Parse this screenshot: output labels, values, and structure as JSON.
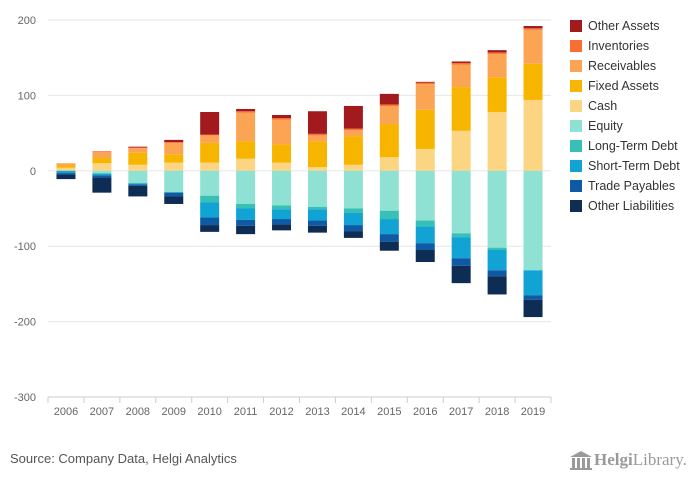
{
  "chart_data": {
    "type": "bar",
    "stacked": true,
    "categories": [
      "2006",
      "2007",
      "2008",
      "2009",
      "2010",
      "2011",
      "2012",
      "2013",
      "2014",
      "2015",
      "2016",
      "2017",
      "2018",
      "2019"
    ],
    "ylim": [
      -300,
      200
    ],
    "yticks": [
      200,
      100,
      0,
      -100,
      -200,
      -300
    ],
    "grid": true,
    "legend_position": "right",
    "positive_series": [
      {
        "name": "Cash",
        "color": "#fcd583",
        "values": [
          4,
          10,
          8,
          11,
          11,
          16,
          11,
          5,
          8,
          18,
          29,
          53,
          78,
          94
        ]
      },
      {
        "name": "Fixed Assets",
        "color": "#f8b500",
        "values": [
          3,
          7,
          16,
          11,
          26,
          23,
          24,
          34,
          38,
          44,
          52,
          58,
          46,
          48
        ]
      },
      {
        "name": "Receivables",
        "color": "#fba454",
        "values": [
          3,
          8,
          6,
          15,
          10,
          38,
          33,
          8,
          8,
          24,
          34,
          30,
          31,
          45
        ]
      },
      {
        "name": "Inventories",
        "color": "#f96e34",
        "values": [
          0,
          1,
          1,
          1,
          1,
          2,
          2,
          2,
          2,
          2,
          2,
          2,
          2,
          2
        ]
      },
      {
        "name": "Other Assets",
        "color": "#a21a1e",
        "values": [
          0,
          0,
          1,
          3,
          30,
          3,
          4,
          30,
          30,
          14,
          1,
          2,
          3,
          3
        ]
      }
    ],
    "negative_series": [
      {
        "name": "Equity",
        "color": "#8fe1d4",
        "values": [
          0,
          -3,
          -16,
          -28,
          -33,
          -44,
          -46,
          -48,
          -50,
          -53,
          -66,
          -83,
          -102,
          -132
        ]
      },
      {
        "name": "Long-Term Debt",
        "color": "#37c0b5",
        "values": [
          0,
          -1,
          -1,
          -1,
          -9,
          -6,
          -5,
          -3,
          -6,
          -11,
          -8,
          -5,
          -3,
          0
        ]
      },
      {
        "name": "Short-Term Debt",
        "color": "#10a3d3",
        "values": [
          -3,
          -2,
          -1,
          0,
          -20,
          -15,
          -13,
          -15,
          -16,
          -20,
          -22,
          -28,
          -27,
          -33
        ]
      },
      {
        "name": "Trade Payables",
        "color": "#0f5aa5",
        "values": [
          -2,
          -3,
          -2,
          -5,
          -10,
          -8,
          -7,
          -7,
          -8,
          -10,
          -9,
          -10,
          -8,
          -6
        ]
      },
      {
        "name": "Other Liabilities",
        "color": "#0d2d55",
        "values": [
          -6,
          -20,
          -14,
          -10,
          -9,
          -11,
          -8,
          -9,
          -9,
          -12,
          -16,
          -23,
          -24,
          -23
        ]
      }
    ],
    "legend_order": [
      "Other Assets",
      "Inventories",
      "Receivables",
      "Fixed Assets",
      "Cash",
      "Equity",
      "Long-Term Debt",
      "Short-Term Debt",
      "Trade Payables",
      "Other Liabilities"
    ]
  },
  "source": "Source: Company Data, Helgi Analytics",
  "logo": {
    "prefix": "Helgi",
    "suffix": "Library."
  }
}
